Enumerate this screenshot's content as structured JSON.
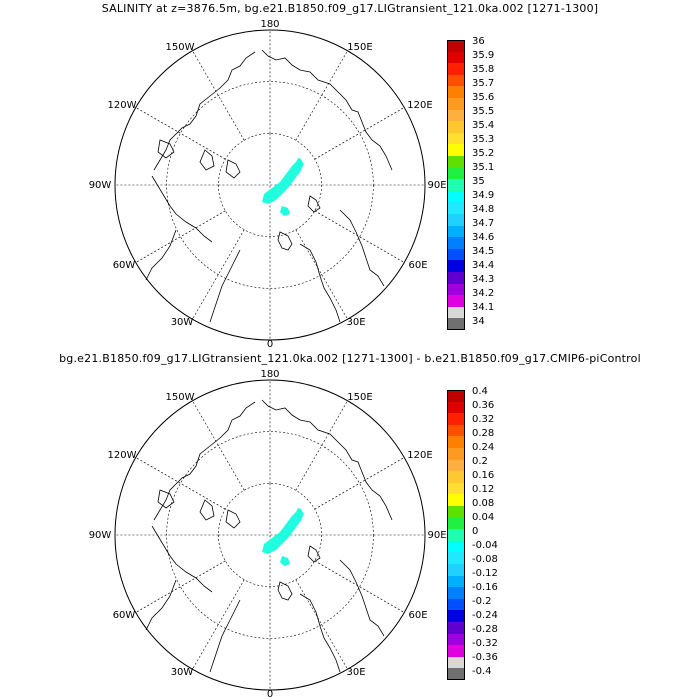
{
  "panels": [
    {
      "title": "SALINITY at z=3876.5m, bg.e21.B1850.f09_g17.LIGtransient_121.0ka.002 [1271-1300]",
      "lon_labels": [
        "180",
        "150W",
        "150E",
        "120W",
        "120E",
        "90W",
        "90E",
        "60W",
        "60E",
        "30W",
        "30E",
        "0"
      ],
      "colorbar": {
        "colors": [
          "#c00000",
          "#e00000",
          "#ff2000",
          "#ff5000",
          "#ff8000",
          "#ff9a20",
          "#ffb040",
          "#ffc830",
          "#ffe030",
          "#ffff00",
          "#60e000",
          "#20f040",
          "#20ffb0",
          "#00ffff",
          "#20e8ff",
          "#20d0ff",
          "#00b0ff",
          "#0080ff",
          "#0050ff",
          "#0000e0",
          "#6000d0",
          "#a000e0",
          "#e000e0",
          "#d8d8d8",
          "#707070"
        ],
        "labels": [
          "36",
          "35.9",
          "35.8",
          "35.7",
          "35.6",
          "35.5",
          "35.4",
          "35.3",
          "35.2",
          "35.1",
          "35",
          "34.9",
          "34.8",
          "34.7",
          "34.6",
          "34.5",
          "34.4",
          "34.3",
          "34.2",
          "34.1",
          "34"
        ]
      },
      "fill_color": "#20ffe0"
    },
    {
      "title": "bg.e21.B1850.f09_g17.LIGtransient_121.0ka.002 [1271-1300] - b.e21.B1850.f09_g17.CMIP6-piControl",
      "lon_labels": [
        "180",
        "150W",
        "150E",
        "120W",
        "120E",
        "90W",
        "90E",
        "60W",
        "60E",
        "30W",
        "30E",
        "0"
      ],
      "colorbar": {
        "colors": [
          "#c00000",
          "#e00000",
          "#ff2000",
          "#ff5000",
          "#ff8000",
          "#ff9a20",
          "#ffb040",
          "#ffc830",
          "#ffe030",
          "#ffff00",
          "#60e000",
          "#20f040",
          "#20ffb0",
          "#00ffff",
          "#20e8ff",
          "#20d0ff",
          "#00b0ff",
          "#0080ff",
          "#0050ff",
          "#0000e0",
          "#6000d0",
          "#a000e0",
          "#e000e0",
          "#d8d8d8",
          "#707070"
        ],
        "labels": [
          "0.4",
          "0.36",
          "0.32",
          "0.28",
          "0.24",
          "0.2",
          "0.16",
          "0.12",
          "0.08",
          "0.04",
          "0",
          "-0.04",
          "-0.08",
          "-0.12",
          "-0.16",
          "-0.2",
          "-0.24",
          "-0.28",
          "-0.32",
          "-0.36",
          "-0.4"
        ]
      },
      "fill_color": "#20ffe0"
    }
  ]
}
